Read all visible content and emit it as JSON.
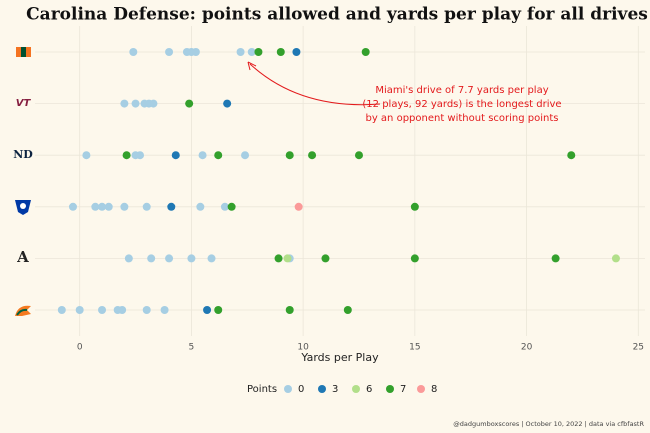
{
  "chart_data": {
    "type": "scatter",
    "title": "Carolina Defense: points allowed and yards per play for all drives",
    "x_label": "Yards per Play",
    "legend_title": "Points",
    "annotation": [
      "Miami's drive of 7.7 yards per play",
      "(12 plays, 92 yards) is the longest drive",
      "by an opponent without scoring points"
    ],
    "caption": "@dadgumboxscores | October 10, 2022 | data via cfbfastR",
    "categories": [
      null,
      null,
      null,
      null,
      null,
      null
    ],
    "xlim": [
      -2,
      25.3
    ],
    "xticks": [
      0,
      5,
      10,
      15,
      20,
      25
    ],
    "grid": true,
    "series": [
      {
        "name": "0",
        "color": "#a6cee3",
        "values": [
          2.4,
          4.0,
          4.8,
          5.0,
          5.2,
          7.2,
          7.7,
          2.0,
          2.5,
          2.9,
          3.1,
          3.3,
          0.3,
          2.5,
          2.7,
          5.5,
          7.4,
          -0.3,
          0.7,
          1.0,
          1.3,
          2.0,
          3.0,
          5.4,
          6.5,
          2.2,
          3.2,
          4.0,
          5.0,
          5.9,
          9.4,
          -0.8,
          0.0,
          1.0,
          1.7,
          1.9,
          3.0,
          3.8
        ],
        "rows": [
          0,
          0,
          0,
          0,
          0,
          0,
          0,
          1,
          1,
          1,
          1,
          1,
          2,
          2,
          2,
          2,
          2,
          3,
          3,
          3,
          3,
          3,
          3,
          3,
          3,
          4,
          4,
          4,
          4,
          4,
          4,
          5,
          5,
          5,
          5,
          5,
          5,
          5
        ]
      },
      {
        "name": "3",
        "color": "#1f78b4",
        "values": [
          9.7,
          6.6,
          4.3,
          4.1,
          5.7
        ],
        "rows": [
          0,
          1,
          2,
          3,
          5
        ]
      },
      {
        "name": "6",
        "color": "#b2df8a",
        "values": [
          9.3,
          24.0
        ],
        "rows": [
          4,
          4
        ]
      },
      {
        "name": "7",
        "color": "#33a02c",
        "values": [
          8.0,
          9.0,
          12.8,
          4.9,
          2.1,
          6.2,
          9.4,
          10.4,
          12.5,
          22.0,
          6.8,
          15.0,
          8.9,
          11.0,
          15.0,
          21.3,
          6.2,
          9.4,
          12.0
        ],
        "rows": [
          0,
          0,
          0,
          1,
          2,
          2,
          2,
          2,
          2,
          2,
          3,
          3,
          4,
          4,
          4,
          4,
          5,
          5,
          5
        ]
      },
      {
        "name": "8",
        "color": "#fb9a99",
        "values": [
          9.8
        ],
        "rows": [
          3
        ]
      }
    ]
  }
}
